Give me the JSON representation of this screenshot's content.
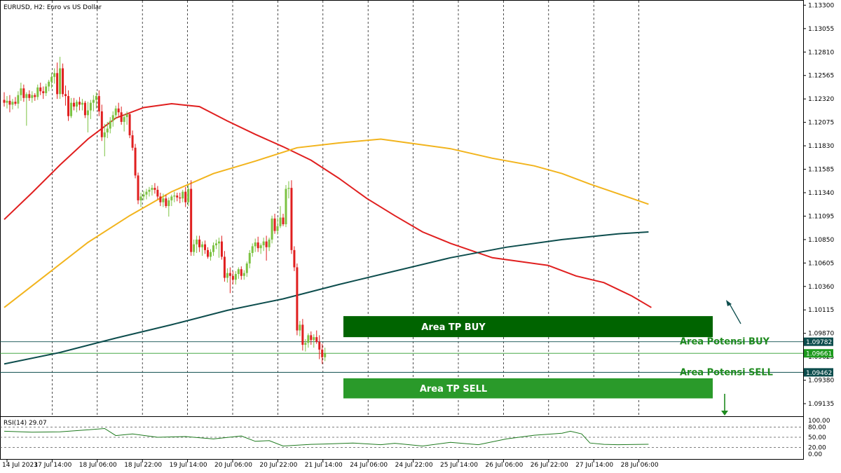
{
  "chart_title": "EURUSD, H2:  Euro vs US Dollar",
  "colors": {
    "bull": "#7cc242",
    "bear": "#e01f1f",
    "ma_red": "#e01f1f",
    "ma_orange": "#f2b41d",
    "ma_dark": "#0d4d4d",
    "zone_buy": "#006400",
    "zone_sell": "#2a9a2a",
    "annotation": "#1e8a1e",
    "rsi_line": "#1e7a1e"
  },
  "chart_data": {
    "type": "candlestick",
    "ylim": [
      1.0904,
      1.1331
    ],
    "y_ticks": [
      "1.13300",
      "1.13055",
      "1.12810",
      "1.12565",
      "1.12320",
      "1.12075",
      "1.11830",
      "1.11585",
      "1.11340",
      "1.11095",
      "1.10850",
      "1.10605",
      "1.10360",
      "1.10115",
      "1.09870",
      "1.09625",
      "1.09380",
      "1.09135"
    ],
    "x_ticks": [
      "14 Jul 2023",
      "17 Jul 14:00",
      "18 Jul 06:00",
      "18 Jul 22:00",
      "19 Jul 14:00",
      "20 Jul 06:00",
      "20 Jul 22:00",
      "21 Jul 14:00",
      "24 Jul 06:00",
      "24 Jul 22:00",
      "25 Jul 14:00",
      "26 Jul 06:00",
      "26 Jul 22:00",
      "27 Jul 14:00",
      "28 Jul 06:00"
    ],
    "candles": [
      [
        1.1231,
        1.1239,
        1.1224,
        1.1228
      ],
      [
        1.1228,
        1.1235,
        1.1222,
        1.123
      ],
      [
        1.123,
        1.1236,
        1.1218,
        1.1226
      ],
      [
        1.1226,
        1.1232,
        1.1221,
        1.1229
      ],
      [
        1.1229,
        1.1234,
        1.1225,
        1.1227
      ],
      [
        1.1227,
        1.124,
        1.1222,
        1.1236
      ],
      [
        1.1236,
        1.1249,
        1.123,
        1.1243
      ],
      [
        1.1243,
        1.1247,
        1.1229,
        1.1233
      ],
      [
        1.1233,
        1.1239,
        1.1204,
        1.1237
      ],
      [
        1.1237,
        1.1241,
        1.123,
        1.1233
      ],
      [
        1.1233,
        1.124,
        1.1228,
        1.1236
      ],
      [
        1.1236,
        1.1238,
        1.123,
        1.1234
      ],
      [
        1.1234,
        1.1247,
        1.1231,
        1.1244
      ],
      [
        1.1244,
        1.1249,
        1.1236,
        1.124
      ],
      [
        1.124,
        1.1245,
        1.1232,
        1.1238
      ],
      [
        1.1238,
        1.1248,
        1.1235,
        1.1245
      ],
      [
        1.1245,
        1.1252,
        1.124,
        1.125
      ],
      [
        1.125,
        1.1259,
        1.1243,
        1.1255
      ],
      [
        1.1255,
        1.1264,
        1.1248,
        1.1259
      ],
      [
        1.1259,
        1.127,
        1.1232,
        1.1237
      ],
      [
        1.1237,
        1.1276,
        1.1232,
        1.1264
      ],
      [
        1.1264,
        1.1269,
        1.1234,
        1.1237
      ],
      [
        1.1237,
        1.1246,
        1.1225,
        1.1235
      ],
      [
        1.1235,
        1.1241,
        1.1209,
        1.1214
      ],
      [
        1.1214,
        1.1233,
        1.1212,
        1.1228
      ],
      [
        1.1228,
        1.1233,
        1.122,
        1.1224
      ],
      [
        1.1224,
        1.1231,
        1.1218,
        1.1229
      ],
      [
        1.1229,
        1.1234,
        1.122,
        1.1226
      ],
      [
        1.1226,
        1.1232,
        1.122,
        1.1228
      ],
      [
        1.1228,
        1.123,
        1.1212,
        1.1215
      ],
      [
        1.1215,
        1.1229,
        1.1197,
        1.122
      ],
      [
        1.122,
        1.1231,
        1.1211,
        1.1228
      ],
      [
        1.1228,
        1.1236,
        1.1219,
        1.1231
      ],
      [
        1.1231,
        1.1239,
        1.1222,
        1.1235
      ],
      [
        1.1235,
        1.1241,
        1.1214,
        1.1219
      ],
      [
        1.1219,
        1.1226,
        1.1188,
        1.1192
      ],
      [
        1.1192,
        1.1206,
        1.1172,
        1.1197
      ],
      [
        1.1197,
        1.1208,
        1.1191,
        1.1201
      ],
      [
        1.1201,
        1.1213,
        1.1196,
        1.1209
      ],
      [
        1.1209,
        1.1219,
        1.1203,
        1.1215
      ],
      [
        1.1215,
        1.1225,
        1.1211,
        1.1222
      ],
      [
        1.1222,
        1.1228,
        1.1214,
        1.1218
      ],
      [
        1.1218,
        1.1224,
        1.1205,
        1.1208
      ],
      [
        1.1208,
        1.1216,
        1.1198,
        1.1213
      ],
      [
        1.1213,
        1.1219,
        1.1205,
        1.1216
      ],
      [
        1.1216,
        1.1217,
        1.1191,
        1.1194
      ],
      [
        1.1194,
        1.1199,
        1.1178,
        1.1181
      ],
      [
        1.1181,
        1.1185,
        1.1149,
        1.1152
      ],
      [
        1.1152,
        1.1155,
        1.1122,
        1.1126
      ],
      [
        1.1126,
        1.1134,
        1.1119,
        1.113
      ],
      [
        1.113,
        1.1136,
        1.1126,
        1.1132
      ],
      [
        1.1132,
        1.1138,
        1.1127,
        1.1135
      ],
      [
        1.1135,
        1.114,
        1.113,
        1.1137
      ],
      [
        1.1137,
        1.1142,
        1.1131,
        1.1139
      ],
      [
        1.1139,
        1.1144,
        1.1133,
        1.1137
      ],
      [
        1.1137,
        1.1141,
        1.1127,
        1.113
      ],
      [
        1.113,
        1.1134,
        1.112,
        1.1124
      ],
      [
        1.1124,
        1.1133,
        1.1119,
        1.1128
      ],
      [
        1.1128,
        1.1132,
        1.1118,
        1.112
      ],
      [
        1.112,
        1.1129,
        1.1109,
        1.1126
      ],
      [
        1.1126,
        1.1132,
        1.112,
        1.113
      ],
      [
        1.113,
        1.1135,
        1.1124,
        1.1131
      ],
      [
        1.1131,
        1.1134,
        1.1125,
        1.1129
      ],
      [
        1.1129,
        1.1134,
        1.1123,
        1.1128
      ],
      [
        1.1128,
        1.1137,
        1.1124,
        1.1135
      ],
      [
        1.1135,
        1.114,
        1.1119,
        1.1124
      ],
      [
        1.1124,
        1.1142,
        1.112,
        1.1138
      ],
      [
        1.1138,
        1.1147,
        1.1068,
        1.1072
      ],
      [
        1.1072,
        1.1085,
        1.1068,
        1.108
      ],
      [
        1.108,
        1.1089,
        1.1071,
        1.1085
      ],
      [
        1.1085,
        1.1089,
        1.1072,
        1.1077
      ],
      [
        1.1077,
        1.1083,
        1.1068,
        1.108
      ],
      [
        1.108,
        1.1084,
        1.107,
        1.1074
      ],
      [
        1.1074,
        1.1077,
        1.1065,
        1.1067
      ],
      [
        1.1067,
        1.1075,
        1.1063,
        1.1072
      ],
      [
        1.1072,
        1.1082,
        1.1068,
        1.1079
      ],
      [
        1.1079,
        1.1085,
        1.1075,
        1.1081
      ],
      [
        1.1081,
        1.1087,
        1.1066,
        1.1083
      ],
      [
        1.1083,
        1.1089,
        1.1064,
        1.1067
      ],
      [
        1.1067,
        1.1073,
        1.1041,
        1.1045
      ],
      [
        1.1045,
        1.1055,
        1.104,
        1.105
      ],
      [
        1.105,
        1.1056,
        1.1029,
        1.1047
      ],
      [
        1.1047,
        1.1052,
        1.1038,
        1.1043
      ],
      [
        1.1043,
        1.1052,
        1.1038,
        1.1049
      ],
      [
        1.1049,
        1.1056,
        1.1044,
        1.1054
      ],
      [
        1.1054,
        1.1057,
        1.1043,
        1.1047
      ],
      [
        1.1047,
        1.1053,
        1.1043,
        1.105
      ],
      [
        1.105,
        1.1062,
        1.1046,
        1.106
      ],
      [
        1.106,
        1.1074,
        1.1055,
        1.1071
      ],
      [
        1.1071,
        1.1081,
        1.1067,
        1.1078
      ],
      [
        1.1078,
        1.1086,
        1.1072,
        1.1082
      ],
      [
        1.1082,
        1.1088,
        1.1072,
        1.1076
      ],
      [
        1.1076,
        1.1081,
        1.107,
        1.1079
      ],
      [
        1.1079,
        1.1087,
        1.1073,
        1.1083
      ],
      [
        1.1083,
        1.1089,
        1.1063,
        1.1077
      ],
      [
        1.1077,
        1.1087,
        1.1073,
        1.1085
      ],
      [
        1.1085,
        1.111,
        1.1081,
        1.1107
      ],
      [
        1.1107,
        1.1112,
        1.1091,
        1.1094
      ],
      [
        1.1094,
        1.1108,
        1.109,
        1.1099
      ],
      [
        1.1099,
        1.112,
        1.1097,
        1.1108
      ],
      [
        1.1108,
        1.1112,
        1.1099,
        1.1101
      ],
      [
        1.1101,
        1.1142,
        1.1098,
        1.1138
      ],
      [
        1.1138,
        1.1146,
        1.1128,
        1.1139
      ],
      [
        1.1139,
        1.1147,
        1.107,
        1.1074
      ],
      [
        1.1074,
        1.1078,
        1.1052,
        1.1056
      ],
      [
        1.1056,
        1.106,
        1.0985,
        1.099
      ],
      [
        1.099,
        1.1,
        1.0984,
        1.0996
      ],
      [
        1.0996,
        1.1002,
        1.0969,
        1.0975
      ],
      [
        1.0975,
        1.0981,
        1.0968,
        1.0977
      ],
      [
        1.0977,
        1.0987,
        1.0972,
        1.0985
      ],
      [
        1.0985,
        1.0989,
        1.0975,
        1.098
      ],
      [
        1.098,
        1.0986,
        1.0972,
        1.0983
      ],
      [
        1.0983,
        1.099,
        1.0976,
        1.0978
      ],
      [
        1.0978,
        1.0985,
        1.096,
        1.097
      ],
      [
        1.097,
        1.0976,
        1.0955,
        1.0962
      ],
      [
        1.0962,
        1.0972,
        1.0958,
        1.0966
      ]
    ],
    "moving_averages": [
      {
        "color_key": "ma_red",
        "x": [
          0,
          10,
          20,
          30,
          40,
          50,
          60,
          70,
          80,
          90,
          100,
          110,
          120,
          130,
          140,
          150,
          160,
          175,
          185,
          195,
          205,
          215,
          225,
          232
        ],
        "y": [
          1.1106,
          1.1134,
          1.1163,
          1.119,
          1.1212,
          1.1223,
          1.1227,
          1.1224,
          1.1209,
          1.1195,
          1.1182,
          1.1168,
          1.1149,
          1.1128,
          1.111,
          1.1093,
          1.1081,
          1.1066,
          1.1062,
          1.1058,
          1.1047,
          1.104,
          1.1026,
          1.1014
        ]
      },
      {
        "color_key": "ma_orange",
        "x": [
          0,
          15,
          30,
          45,
          60,
          75,
          90,
          105,
          120,
          135,
          145,
          160,
          175,
          190,
          200,
          210,
          220,
          231
        ],
        "y": [
          1.1014,
          1.1048,
          1.1082,
          1.111,
          1.1135,
          1.1154,
          1.1167,
          1.1181,
          1.1186,
          1.119,
          1.1186,
          1.118,
          1.117,
          1.1162,
          1.1154,
          1.1143,
          1.1133,
          1.1122
        ]
      },
      {
        "color_key": "ma_dark",
        "x": [
          0,
          20,
          40,
          60,
          80,
          100,
          120,
          140,
          160,
          180,
          200,
          220,
          231
        ],
        "y": [
          1.0955,
          1.0967,
          1.0982,
          1.0996,
          1.1011,
          1.1023,
          1.1038,
          1.1052,
          1.1066,
          1.1077,
          1.1085,
          1.1091,
          1.1093
        ]
      }
    ],
    "zones": [
      {
        "label": "Area TP BUY",
        "from": 1.0983,
        "to": 1.1005,
        "color_key": "zone_buy"
      },
      {
        "label": "Area TP SELL",
        "from": 1.0919,
        "to": 1.094,
        "color_key": "zone_sell"
      }
    ],
    "hlines": [
      {
        "value": 1.09782,
        "label": "1.09782",
        "color": "#0d4d4d",
        "tag_bg": "#0d4d4d"
      },
      {
        "value": 1.09661,
        "label": "1.09661",
        "color": "#2a9a2a",
        "tag_bg": "#1e9a1e"
      },
      {
        "value": 1.09462,
        "label": "1.09462",
        "color": "#0d4d4d",
        "tag_bg": "#0d4d4d"
      }
    ],
    "annotations": [
      {
        "text": "Area Potensi BUY",
        "value": 1.09782
      },
      {
        "text": "Area Potensi SELL",
        "value": 1.09462
      }
    ],
    "rsi": {
      "label": "RSI(14) 29.07",
      "ticks": [
        "100.00",
        "80.00",
        "50.00",
        "20.00",
        "0.00"
      ],
      "levels": [
        80,
        50,
        20
      ],
      "x": [
        0,
        10,
        20,
        30,
        36,
        40,
        46,
        55,
        65,
        75,
        85,
        90,
        95,
        100,
        110,
        115,
        125,
        135,
        140,
        150,
        160,
        170,
        180,
        190,
        200,
        203,
        207,
        210,
        215,
        220,
        231
      ],
      "y": [
        68,
        65,
        66,
        72,
        76,
        55,
        60,
        50,
        52,
        45,
        54,
        38,
        40,
        24,
        29,
        30,
        33,
        28,
        32,
        24,
        35,
        28,
        45,
        56,
        62,
        68,
        60,
        33,
        29,
        28,
        29.07
      ]
    }
  }
}
